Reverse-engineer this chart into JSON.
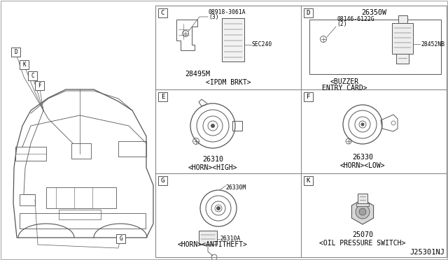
{
  "bg_color": "#ffffff",
  "line_color": "#555555",
  "border_color": "#888888",
  "title_code": "J25301NJ",
  "panels": [
    {
      "id": "C",
      "col": 0,
      "row": 0,
      "part_num": "28495M",
      "label": "<IPDM BRKT>",
      "ref1": "08918-3061A",
      "ref1b": "(3)",
      "ref2": "SEC240"
    },
    {
      "id": "D",
      "col": 1,
      "row": 0,
      "part_num": "26350W",
      "label": "<BUZZER ENTRY CARD>",
      "ref1": "08146-6122G",
      "ref1b": "(2)",
      "ref2": "28452NB"
    },
    {
      "id": "E",
      "col": 0,
      "row": 1,
      "part_num": "26310",
      "label": "<HORN><HIGH>"
    },
    {
      "id": "F",
      "col": 1,
      "row": 1,
      "part_num": "26330",
      "label": "<HORN><LOW>"
    },
    {
      "id": "G",
      "col": 0,
      "row": 2,
      "part_num1": "26330M",
      "part_num2": "26310A",
      "label": "<HORN><ANTITHEFT>"
    },
    {
      "id": "K",
      "col": 1,
      "row": 2,
      "part_num": "25070",
      "label": "<OIL PRESSURE SWITCH>"
    }
  ],
  "font_size_label": 7.0,
  "font_size_part": 7.2,
  "font_size_ref": 5.8,
  "font_size_id": 7.5
}
